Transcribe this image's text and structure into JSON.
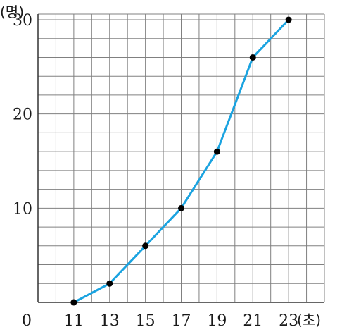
{
  "chart_data": {
    "type": "line",
    "y_unit": "(명)",
    "x_unit": "(초)",
    "origin_label": "0",
    "xlim": [
      9,
      25
    ],
    "ylim": [
      0,
      30
    ],
    "x_ticks": [
      11,
      13,
      15,
      17,
      19,
      21,
      23
    ],
    "y_ticks": [
      10,
      20,
      30
    ],
    "x_grid_step": 1,
    "y_grid_step": 2,
    "grid": true,
    "series": [
      {
        "x": [
          11,
          13,
          15,
          17,
          19,
          21,
          23
        ],
        "y": [
          0,
          2,
          6,
          10,
          16,
          26,
          30
        ]
      }
    ],
    "colors": {
      "line": "#1aa3e0",
      "marker": "#000000",
      "grid": "#808080",
      "axis": "#333333"
    }
  }
}
